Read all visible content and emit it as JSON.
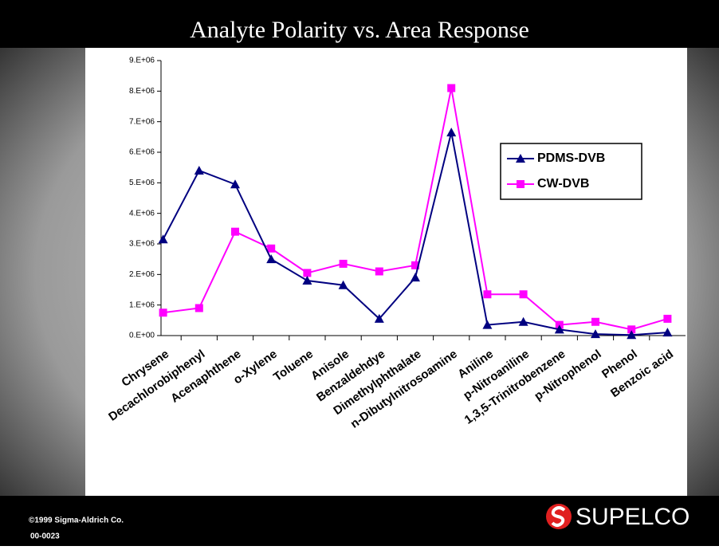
{
  "chart_data": {
    "type": "line",
    "title": "Analyte Polarity vs. Area Response",
    "categories": [
      "Chrysene",
      "Decachlorobiphenyl",
      "Acenaphthene",
      "o-Xylene",
      "Toluene",
      "Anisole",
      "Benzaldehdye",
      "Dimethylphthalate",
      "n-Dibutylnitrosoamine",
      "Aniline",
      "p-Nitroaniline",
      "1,3,5-Trinitrobenzene",
      "p-Nitrophenol",
      "Phenol",
      "Benzoic acid"
    ],
    "series": [
      {
        "name": "PDMS-DVB",
        "color": "#000080",
        "marker": "triangle",
        "values": [
          3150000,
          5400000,
          4950000,
          2500000,
          1800000,
          1650000,
          550000,
          1900000,
          6650000,
          350000,
          450000,
          200000,
          50000,
          20000,
          100000
        ]
      },
      {
        "name": "CW-DVB",
        "color": "#ff00ff",
        "marker": "square",
        "values": [
          750000,
          900000,
          3400000,
          2850000,
          2050000,
          2350000,
          2100000,
          2300000,
          8100000,
          1350000,
          1350000,
          350000,
          450000,
          200000,
          550000
        ]
      }
    ],
    "ylim": [
      0,
      9000000
    ],
    "yticks": [
      {
        "value": 0,
        "label": "0.E+00"
      },
      {
        "value": 1000000,
        "label": "1.E+06"
      },
      {
        "value": 2000000,
        "label": "2.E+06"
      },
      {
        "value": 3000000,
        "label": "3.E+06"
      },
      {
        "value": 4000000,
        "label": "4.E+06"
      },
      {
        "value": 5000000,
        "label": "5.E+06"
      },
      {
        "value": 6000000,
        "label": "6.E+06"
      },
      {
        "value": 7000000,
        "label": "7.E+06"
      },
      {
        "value": 8000000,
        "label": "8.E+06"
      },
      {
        "value": 9000000,
        "label": "9.E+06"
      }
    ],
    "grid": false,
    "legend": "upper right"
  },
  "footer": {
    "copyright": "©1999 Sigma-Aldrich Co.",
    "code": "00-0023",
    "brand": "SUPELCO"
  }
}
